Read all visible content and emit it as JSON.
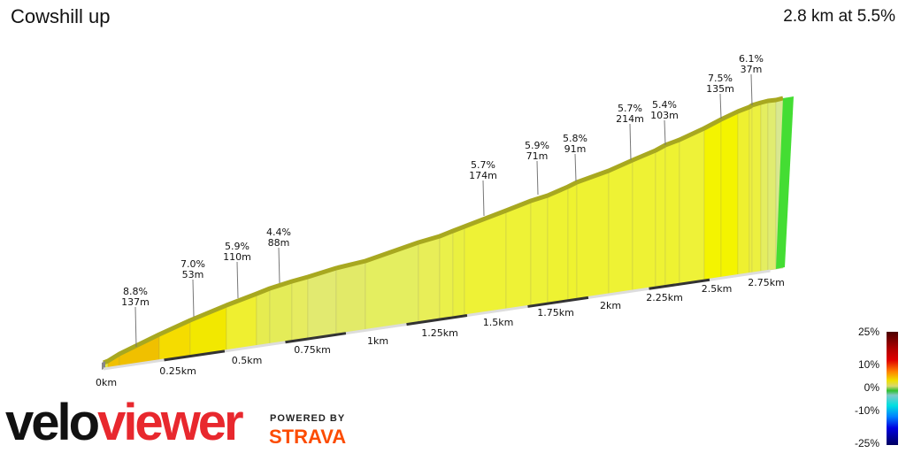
{
  "header": {
    "title": "Cowshill up",
    "summary": "2.8 km at 5.5%"
  },
  "chart_data": {
    "type": "area",
    "title": "Cowshill up",
    "subtitle": "2.8 km at 5.5%",
    "xlabel": "Distance",
    "ylabel": "Elevation",
    "x_ticks": [
      "0km",
      "0.25km",
      "0.5km",
      "0.75km",
      "1km",
      "1.25km",
      "1.5km",
      "1.75km",
      "2km",
      "2.25km",
      "2.5km",
      "2.75km"
    ],
    "segments": [
      {
        "gradient": "8.8%",
        "length": "137m"
      },
      {
        "gradient": "7.0%",
        "length": "53m"
      },
      {
        "gradient": "5.9%",
        "length": "110m"
      },
      {
        "gradient": "4.4%",
        "length": "88m"
      },
      {
        "gradient": "5.7%",
        "length": "174m"
      },
      {
        "gradient": "5.9%",
        "length": "71m"
      },
      {
        "gradient": "5.8%",
        "length": "91m"
      },
      {
        "gradient": "5.7%",
        "length": "214m"
      },
      {
        "gradient": "5.4%",
        "length": "103m"
      },
      {
        "gradient": "7.5%",
        "length": "135m"
      },
      {
        "gradient": "6.1%",
        "length": "37m"
      }
    ],
    "legend": {
      "placement": "bottom-right",
      "labels": [
        "25%",
        "10%",
        "0%",
        "-10%",
        "-25%"
      ]
    }
  },
  "branding": {
    "logo_a": "velo",
    "logo_b": "viewer",
    "powered": "POWERED BY",
    "strava": "STRAVA"
  }
}
